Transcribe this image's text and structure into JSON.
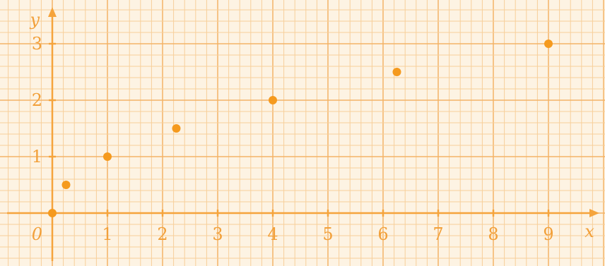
{
  "chart_data": {
    "type": "scatter",
    "xlabel": "x",
    "ylabel": "y",
    "origin_label": "0",
    "x_ticks": [
      "1",
      "2",
      "3",
      "4",
      "5",
      "6",
      "7",
      "8",
      "9"
    ],
    "y_ticks": [
      "1",
      "2",
      "3"
    ],
    "xlim": [
      -0.5,
      10
    ],
    "ylim": [
      -0.85,
      3.6
    ],
    "grid": true,
    "points": [
      {
        "x": 0.25,
        "y": 0.5
      },
      {
        "x": 1,
        "y": 1
      },
      {
        "x": 2.25,
        "y": 1.5
      },
      {
        "x": 4,
        "y": 2
      },
      {
        "x": 6.25,
        "y": 2.5
      },
      {
        "x": 9,
        "y": 3
      }
    ],
    "colors": {
      "paper": "#fdf3e3",
      "grid_minor": "#f7cf9a",
      "grid_major": "#f3b367",
      "axis": "#f5a43c",
      "point": "#f59a1e"
    }
  }
}
